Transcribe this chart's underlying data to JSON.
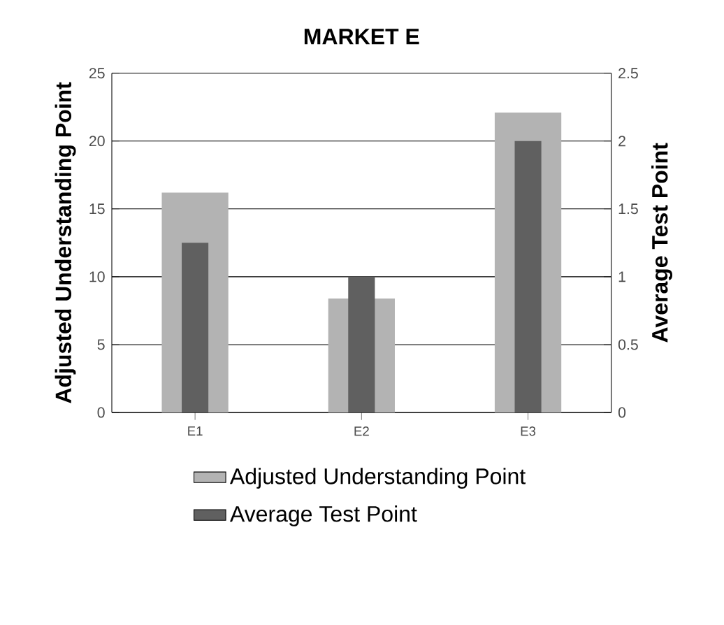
{
  "chart_data": {
    "type": "bar",
    "title": "MARKET E",
    "categories": [
      "E1",
      "E2",
      "E3"
    ],
    "series": [
      {
        "name": "Adjusted Understanding Point",
        "color": "#b3b3b3",
        "values": [
          16.2,
          8.4,
          22.1
        ]
      },
      {
        "name": "Average Test Point",
        "color": "#606060",
        "values": [
          1.25,
          1.0,
          2.0
        ],
        "axis": "y2"
      }
    ],
    "ylabel": "Adjusted Understanding Point",
    "y2label": "Average Test Point",
    "ylim": [
      0,
      25
    ],
    "yticks": [
      0,
      5,
      10,
      15,
      20,
      25
    ],
    "y2lim": [
      0,
      2.5
    ],
    "y2ticks": [
      0,
      0.5,
      1,
      1.5,
      2,
      2.5
    ],
    "grid": "y",
    "legend": "bottom"
  }
}
